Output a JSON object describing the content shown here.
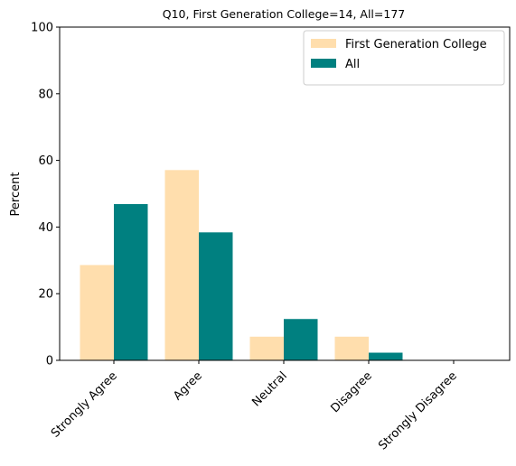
{
  "chart_data": {
    "type": "bar",
    "title": "Q10, First Generation College=14, All=177",
    "xlabel": "",
    "ylabel": "Percent",
    "ylim": [
      0,
      100
    ],
    "yticks": [
      0,
      20,
      40,
      60,
      80,
      100
    ],
    "categories": [
      "Strongly Agree",
      "Agree",
      "Neutral",
      "Disagree",
      "Strongly Disagree"
    ],
    "series": [
      {
        "name": "First Generation College",
        "color": "#FFDEAD",
        "values": [
          28.6,
          57.1,
          7.1,
          7.1,
          0.0
        ]
      },
      {
        "name": "All",
        "color": "#008080",
        "values": [
          46.9,
          38.4,
          12.4,
          2.3,
          0.0
        ]
      }
    ],
    "legend_position": "top-right",
    "grid": false
  }
}
